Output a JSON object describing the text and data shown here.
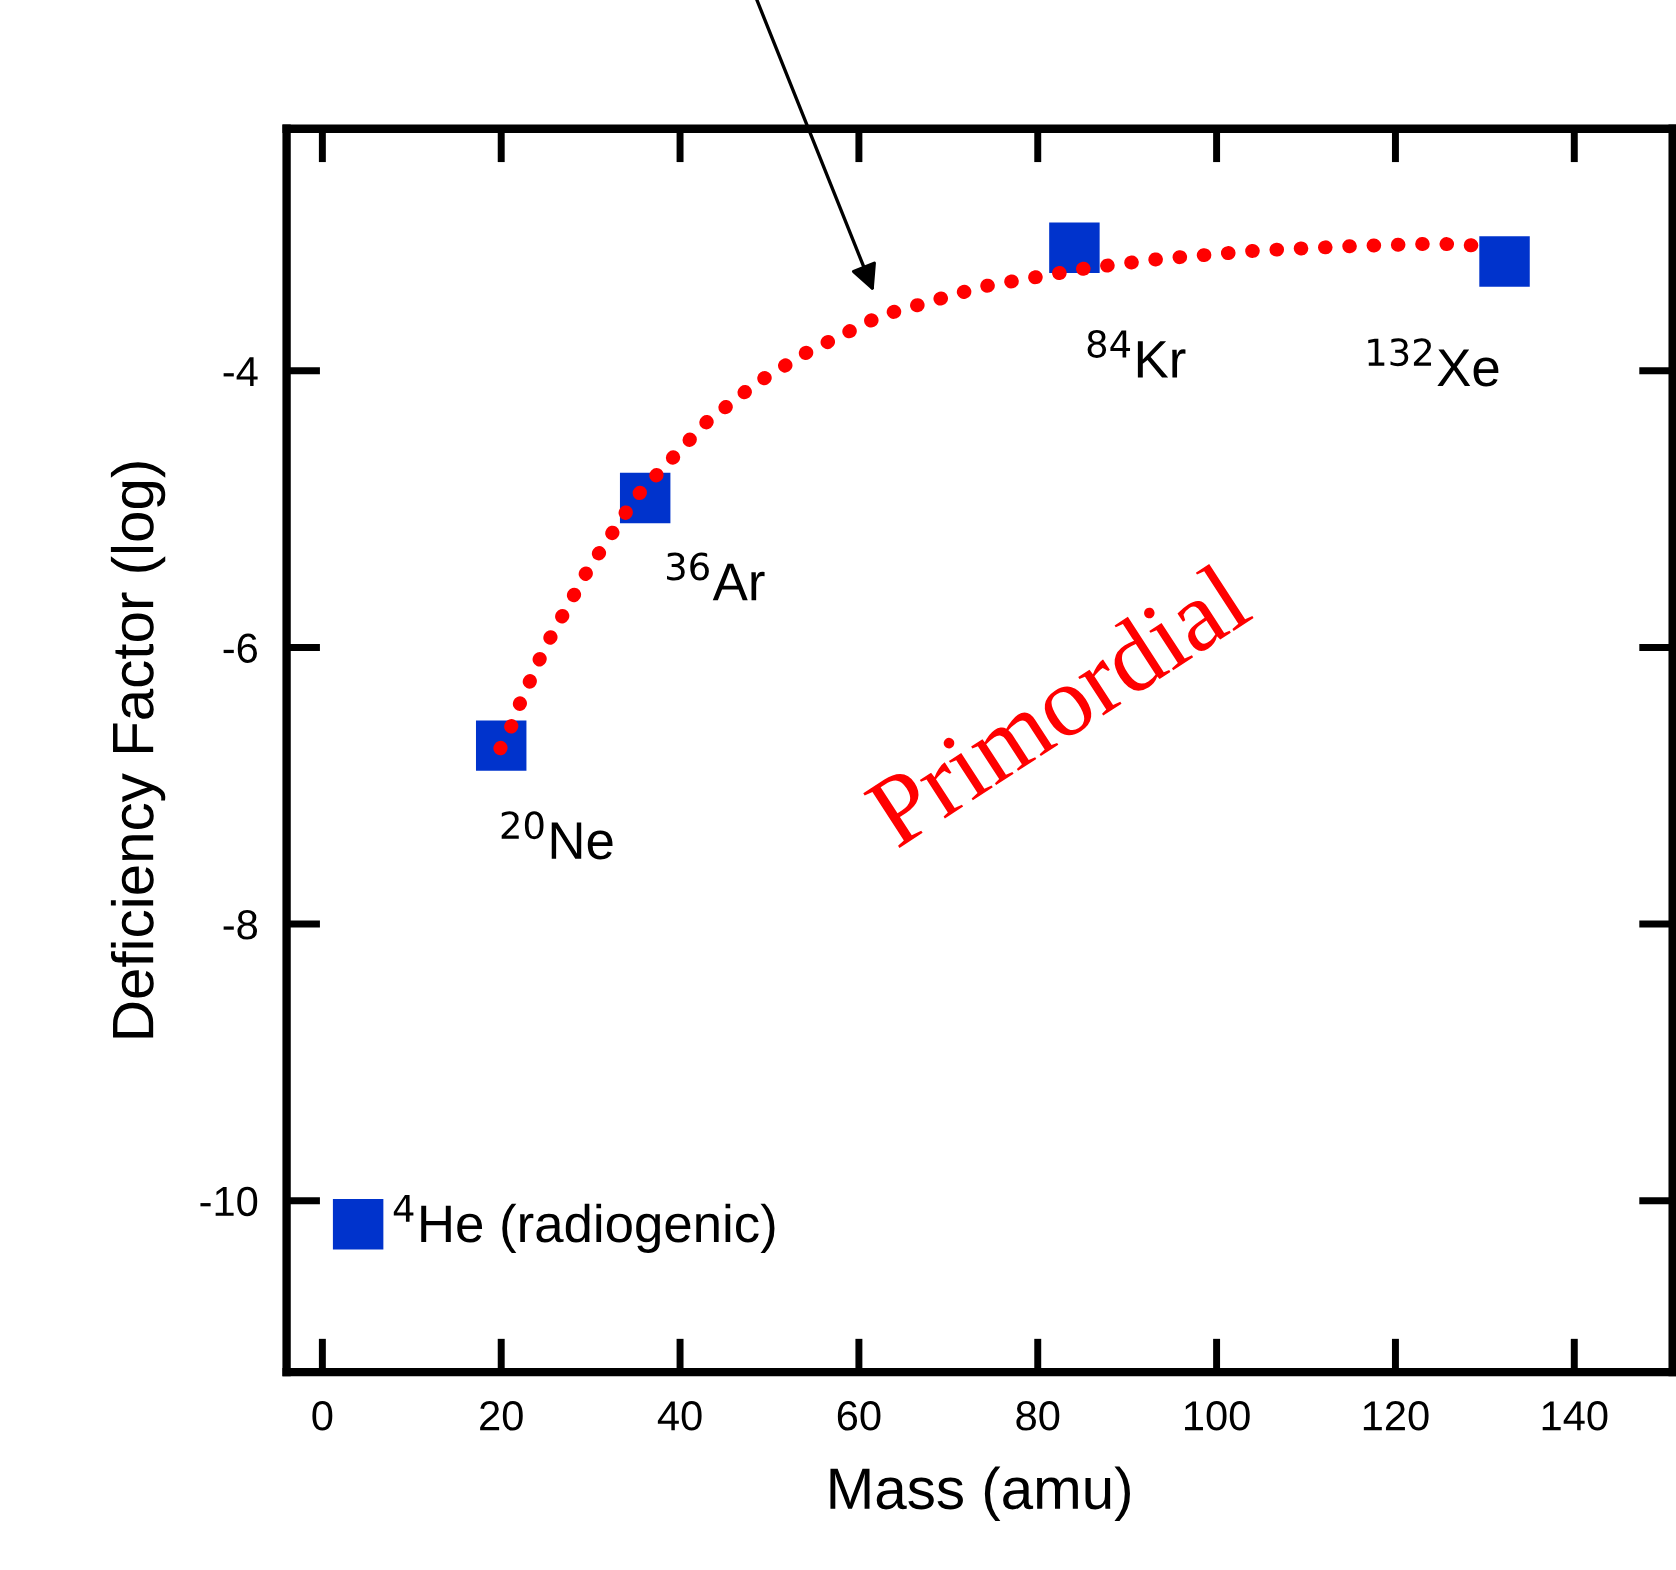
{
  "chart_data": {
    "type": "scatter",
    "xlabel": "Mass (amu)",
    "ylabel": "Deficiency Factor (log)",
    "xlim": [
      -4,
      151
    ],
    "ylim": [
      -11.24,
      -2.25
    ],
    "xticks": [
      0,
      20,
      40,
      60,
      80,
      100,
      120,
      140
    ],
    "yticks": [
      -4,
      -6,
      -8,
      -10
    ],
    "grid": false,
    "legend": false,
    "marker": "square",
    "series": [
      {
        "color": "#0033cc",
        "x": [
          4,
          20,
          36.1,
          84.1,
          132.2
        ],
        "values": [
          -10.17,
          -6.71,
          -4.92,
          -3.11,
          -3.21
        ]
      },
      {
        "type": "line",
        "color": "#ff0000",
        "line_style": "dotted",
        "marker": "none",
        "x": [
          19.9,
          21.2,
          22.3,
          23.6,
          24.8,
          29.6,
          35.1,
          42.8,
          48.5,
          54.1,
          62.5,
          73.9,
          85.3,
          93.8,
          104.7,
          114.6,
          124.6,
          130.7
        ],
        "values": [
          -6.73,
          -6.56,
          -6.37,
          -6.19,
          -6.01,
          -5.45,
          -4.91,
          -4.38,
          -4.09,
          -3.87,
          -3.6,
          -3.39,
          -3.26,
          -3.19,
          -3.13,
          -3.1,
          -3.08,
          -3.1
        ]
      }
    ],
    "annotations": [
      {
        "text": "$^{4}$He (radiogenic)",
        "x": 4,
        "y": -10.17
      },
      {
        "text": "$^{20}$Ne",
        "x": 20,
        "y": -6.71
      },
      {
        "text": "$^{36}$Ar",
        "x": 36.1,
        "y": -4.92
      },
      {
        "text": "$^{84}$Kr",
        "x": 84.1,
        "y": -3.11
      },
      {
        "text": "$^{132}$Xe",
        "x": 132.2,
        "y": -3.21
      },
      "Primordial"
    ]
  }
}
